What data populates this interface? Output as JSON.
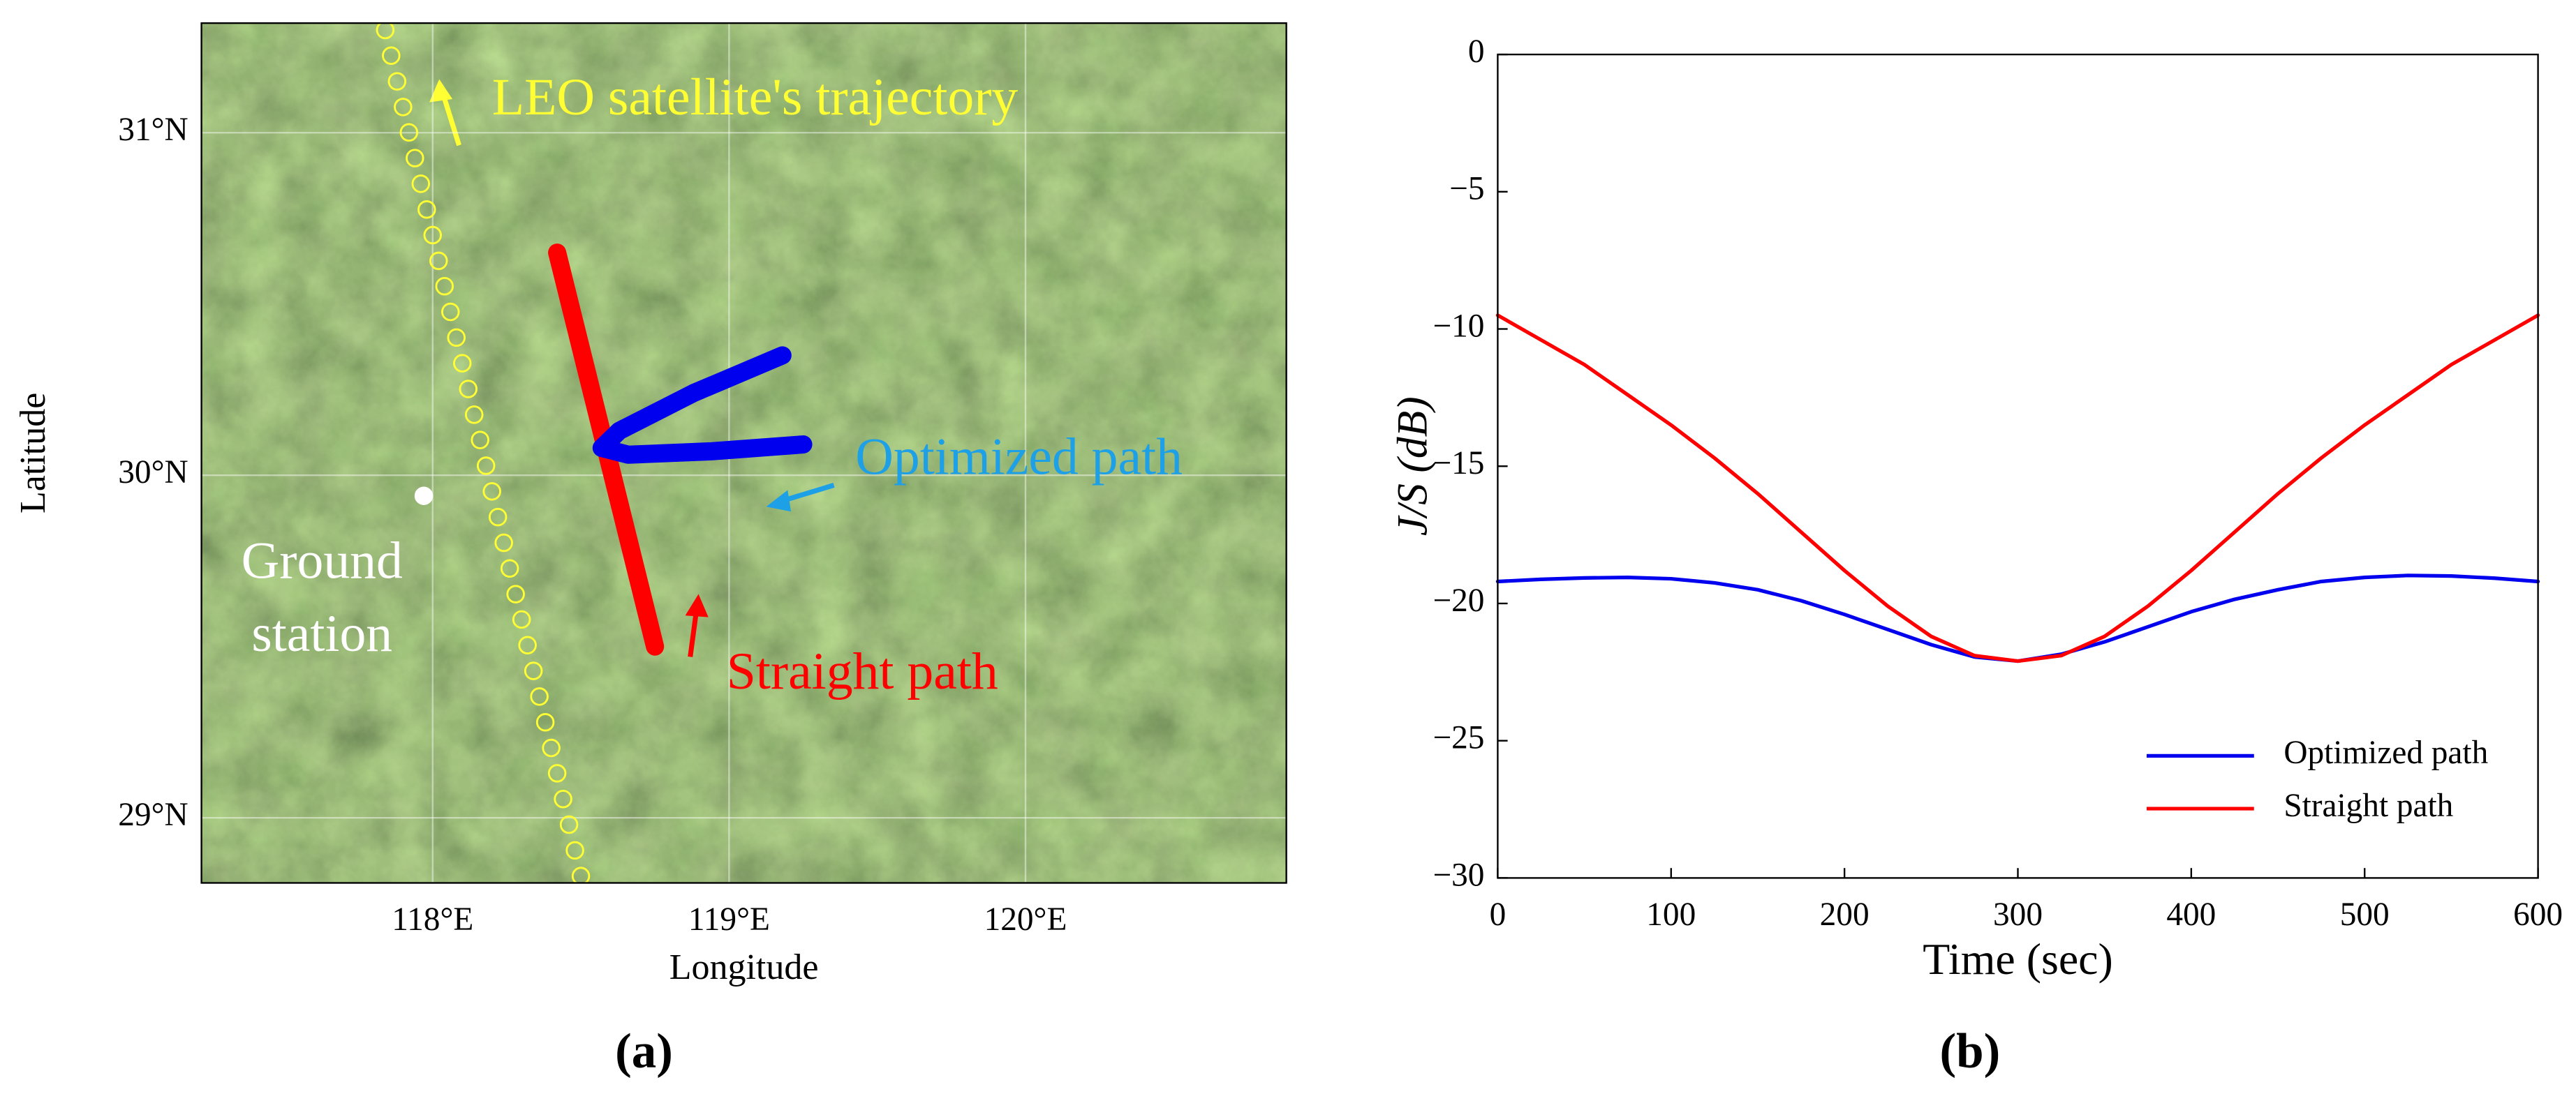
{
  "chart_data": [
    {
      "type": "line",
      "panel": "(a)",
      "xlabel": "Longitude",
      "ylabel": "Latitude",
      "xlim": [
        117.22,
        120.88
      ],
      "ylim": [
        28.81,
        31.32
      ],
      "xticks": [
        {
          "value": 118,
          "label": "118°E"
        },
        {
          "value": 119,
          "label": "119°E"
        },
        {
          "value": 120,
          "label": "120°E"
        }
      ],
      "yticks": [
        {
          "value": 29,
          "label": "29°N"
        },
        {
          "value": 30,
          "label": "30°N"
        },
        {
          "value": 31,
          "label": "31°N"
        }
      ],
      "grid": true,
      "series": [
        {
          "marker": "circle",
          "color": "#ffff33",
          "x": [
            117.84,
            117.86,
            117.88,
            117.9,
            117.92,
            117.94,
            117.96,
            117.98,
            118.0,
            118.02,
            118.04,
            118.06,
            118.08,
            118.1,
            118.12,
            118.14,
            118.16,
            118.18,
            118.2,
            118.22,
            118.24,
            118.26,
            118.28,
            118.3,
            118.32,
            118.34,
            118.36,
            118.38,
            118.4,
            118.42,
            118.44,
            118.46,
            118.48,
            118.5
          ],
          "values": [
            31.3,
            31.225,
            31.15,
            31.075,
            31.001,
            30.926,
            30.851,
            30.776,
            30.701,
            30.626,
            30.552,
            30.477,
            30.402,
            30.327,
            30.252,
            30.177,
            30.103,
            30.028,
            29.953,
            29.878,
            29.803,
            29.728,
            29.653,
            29.579,
            29.504,
            29.429,
            29.354,
            29.279,
            29.204,
            29.13,
            29.055,
            28.98,
            28.905,
            28.83
          ]
        },
        {
          "color": "#ff0000",
          "x": [
            118.42,
            118.75
          ],
          "values": [
            30.65,
            29.5
          ]
        },
        {
          "color": "#0000ee",
          "x": [
            119.18,
            118.88,
            118.63,
            118.57,
            118.66,
            118.94,
            119.25
          ],
          "values": [
            30.35,
            30.24,
            30.13,
            30.08,
            30.06,
            30.07,
            30.09
          ]
        },
        {
          "marker": "dot",
          "color": "#ffffff",
          "x": [
            117.97
          ],
          "values": [
            29.94
          ]
        }
      ],
      "annotations": [
        {
          "text": "LEO satellite's trajectory",
          "color": "#ffff33"
        },
        {
          "text": "Optimized path",
          "color": "#1ea0e6"
        },
        {
          "text": "Straight path",
          "color": "#ff0000"
        },
        {
          "text": "Ground",
          "color": "#ffffff"
        },
        {
          "text": "station",
          "color": "#ffffff"
        }
      ]
    },
    {
      "type": "line",
      "panel": "(b)",
      "xlabel": "Time (sec)",
      "ylabel": "J/S (dB)",
      "xlim": [
        0,
        600
      ],
      "ylim": [
        -30,
        0
      ],
      "xticks": [
        0,
        100,
        200,
        300,
        400,
        500,
        600
      ],
      "yticks": [
        {
          "value": -30,
          "label": "−30"
        },
        {
          "value": -25,
          "label": "−25"
        },
        {
          "value": -20,
          "label": "−20"
        },
        {
          "value": -15,
          "label": "−15"
        },
        {
          "value": -10,
          "label": "−10"
        },
        {
          "value": -5,
          "label": "−5"
        },
        0
      ],
      "grid": false,
      "legend": "lower right",
      "x": [
        0,
        25,
        50,
        75,
        100,
        125,
        150,
        175,
        200,
        225,
        250,
        275,
        300,
        325,
        350,
        375,
        400,
        425,
        450,
        475,
        500,
        525,
        550,
        575,
        600
      ],
      "series": [
        {
          "name": "Optimized path",
          "color": "#0000ee",
          "values": [
            -19.2,
            -19.12,
            -19.07,
            -19.05,
            -19.1,
            -19.25,
            -19.5,
            -19.9,
            -20.4,
            -20.95,
            -21.5,
            -21.95,
            -22.1,
            -21.85,
            -21.4,
            -20.85,
            -20.3,
            -19.85,
            -19.5,
            -19.2,
            -19.05,
            -18.98,
            -19.0,
            -19.08,
            -19.2
          ]
        },
        {
          "name": "Straight path",
          "color": "#ff0000",
          "values": [
            -9.5,
            -10.4,
            -11.3,
            -12.4,
            -13.5,
            -14.7,
            -16.0,
            -17.4,
            -18.8,
            -20.1,
            -21.2,
            -21.9,
            -22.1,
            -21.9,
            -21.2,
            -20.1,
            -18.8,
            -17.4,
            -16.0,
            -14.7,
            -13.5,
            -12.4,
            -11.3,
            -10.4,
            -9.5
          ]
        }
      ]
    }
  ]
}
